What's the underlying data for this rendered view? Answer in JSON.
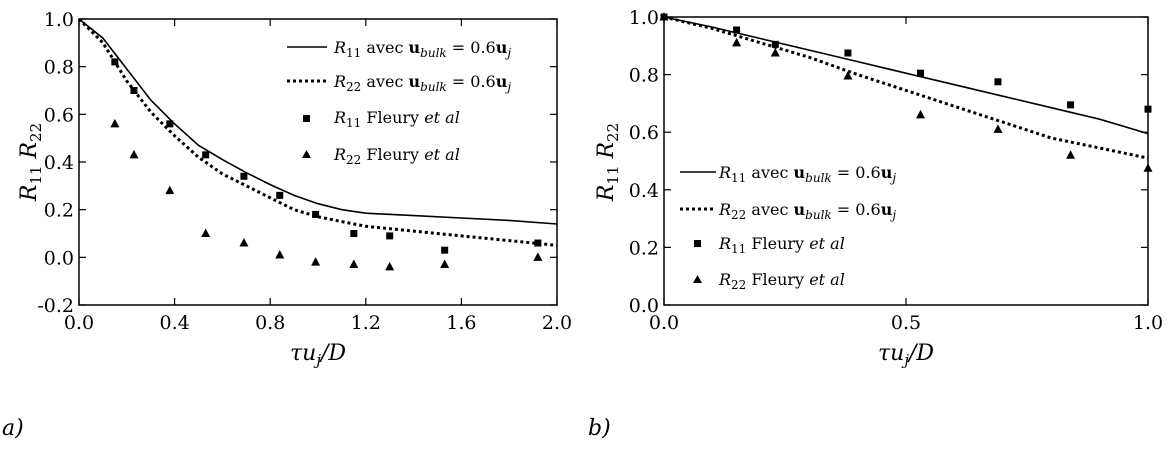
{
  "chart_data": [
    {
      "type": "line",
      "panel": "a",
      "xlabel": "τu_j/D",
      "ylabel": "R11  R22",
      "xlim": [
        0.0,
        2.0
      ],
      "ylim": [
        -0.2,
        1.0
      ],
      "xticks": [
        "0.0",
        "0.4",
        "0.8",
        "1.2",
        "1.6",
        "2.0"
      ],
      "yticks": [
        "-0.2",
        "0.0",
        "0.2",
        "0.4",
        "0.6",
        "0.8",
        "1.0"
      ],
      "grid": false,
      "legend_position": "top-right",
      "series": [
        {
          "name": "R11 avec u_bulk = 0.6u_j",
          "style": "solid",
          "x": [
            0.0,
            0.1,
            0.2,
            0.3,
            0.4,
            0.5,
            0.6,
            0.7,
            0.8,
            0.9,
            1.0,
            1.1,
            1.2,
            1.4,
            1.6,
            1.8,
            2.0
          ],
          "y": [
            1.0,
            0.92,
            0.79,
            0.66,
            0.56,
            0.47,
            0.41,
            0.355,
            0.305,
            0.26,
            0.225,
            0.2,
            0.185,
            0.175,
            0.165,
            0.155,
            0.14
          ]
        },
        {
          "name": "R22 avec u_bulk = 0.6u_j",
          "style": "dotted",
          "x": [
            0.0,
            0.1,
            0.2,
            0.3,
            0.4,
            0.5,
            0.6,
            0.7,
            0.8,
            0.9,
            1.0,
            1.1,
            1.2,
            1.4,
            1.6,
            1.8,
            2.0
          ],
          "y": [
            1.0,
            0.9,
            0.74,
            0.61,
            0.51,
            0.42,
            0.35,
            0.3,
            0.25,
            0.2,
            0.17,
            0.15,
            0.13,
            0.11,
            0.09,
            0.07,
            0.05
          ]
        },
        {
          "name": "R11 Fleury et al",
          "marker": "square",
          "x": [
            0.15,
            0.23,
            0.38,
            0.53,
            0.69,
            0.84,
            0.99,
            1.15,
            1.3,
            1.53,
            1.92
          ],
          "y": [
            0.82,
            0.7,
            0.56,
            0.43,
            0.34,
            0.26,
            0.18,
            0.1,
            0.09,
            0.03,
            0.06
          ]
        },
        {
          "name": "R22 Fleury et al",
          "marker": "triangle",
          "x": [
            0.15,
            0.23,
            0.38,
            0.53,
            0.69,
            0.84,
            0.99,
            1.15,
            1.3,
            1.53,
            1.92
          ],
          "y": [
            0.56,
            0.43,
            0.28,
            0.1,
            0.06,
            0.01,
            -0.02,
            -0.03,
            -0.04,
            -0.03,
            0.0
          ]
        }
      ]
    },
    {
      "type": "line",
      "panel": "b",
      "xlabel": "τu_j/D",
      "ylabel": "R11  R22",
      "xlim": [
        0.0,
        1.0
      ],
      "ylim": [
        0.0,
        1.0
      ],
      "xticks": [
        "0.0",
        "0.5",
        "1.0"
      ],
      "yticks": [
        "0.0",
        "0.2",
        "0.4",
        "0.6",
        "0.8",
        "1.0"
      ],
      "grid": false,
      "legend_position": "bottom-left",
      "series": [
        {
          "name": "R11 avec u_bulk = 0.6u_j",
          "style": "solid",
          "x": [
            0.0,
            0.1,
            0.2,
            0.3,
            0.4,
            0.5,
            0.6,
            0.7,
            0.8,
            0.9,
            1.0
          ],
          "y": [
            1.0,
            0.965,
            0.925,
            0.885,
            0.845,
            0.805,
            0.765,
            0.725,
            0.685,
            0.645,
            0.595
          ]
        },
        {
          "name": "R22 avec u_bulk = 0.6u_j",
          "style": "dotted",
          "x": [
            0.0,
            0.1,
            0.2,
            0.3,
            0.4,
            0.5,
            0.6,
            0.7,
            0.8,
            0.9,
            1.0
          ],
          "y": [
            1.0,
            0.96,
            0.91,
            0.86,
            0.8,
            0.745,
            0.69,
            0.635,
            0.58,
            0.545,
            0.51
          ]
        },
        {
          "name": "R11 Fleury et al",
          "marker": "square",
          "x": [
            0.0,
            0.15,
            0.23,
            0.38,
            0.53,
            0.69,
            0.84,
            1.0
          ],
          "y": [
            1.0,
            0.955,
            0.905,
            0.875,
            0.805,
            0.775,
            0.695,
            0.68
          ]
        },
        {
          "name": "R22 Fleury et al",
          "marker": "triangle",
          "x": [
            0.0,
            0.15,
            0.23,
            0.38,
            0.53,
            0.69,
            0.84,
            1.0
          ],
          "y": [
            1.0,
            0.91,
            0.875,
            0.795,
            0.66,
            0.61,
            0.52,
            0.475
          ]
        }
      ]
    }
  ],
  "panels": {
    "a": {
      "label": "a)",
      "xticks": [
        "0.0",
        "0.4",
        "0.8",
        "1.2",
        "1.6",
        "2.0"
      ],
      "yticks": [
        "-0.2",
        "0.0",
        "0.2",
        "0.4",
        "0.6",
        "0.8",
        "1.0"
      ],
      "xlabel": "τu_j/D",
      "ylabel": "R11  R22",
      "legend": {
        "s1": "R11 avec u_bulk = 0.6u_j",
        "s2": "R22 avec u_bulk = 0.6u_j",
        "s3": "R11 Fleury et al",
        "s4": "R22 Fleury et al"
      }
    },
    "b": {
      "label": "b)",
      "xticks": [
        "0.0",
        "0.5",
        "1.0"
      ],
      "yticks": [
        "0.0",
        "0.2",
        "0.4",
        "0.6",
        "0.8",
        "1.0"
      ],
      "xlabel": "τu_j/D",
      "ylabel": "R11  R22",
      "legend": {
        "s1": "R11 avec u_bulk = 0.6u_j",
        "s2": "R22 avec u_bulk = 0.6u_j",
        "s3": "R11 Fleury et al",
        "s4": "R22 Fleury et al"
      }
    }
  }
}
